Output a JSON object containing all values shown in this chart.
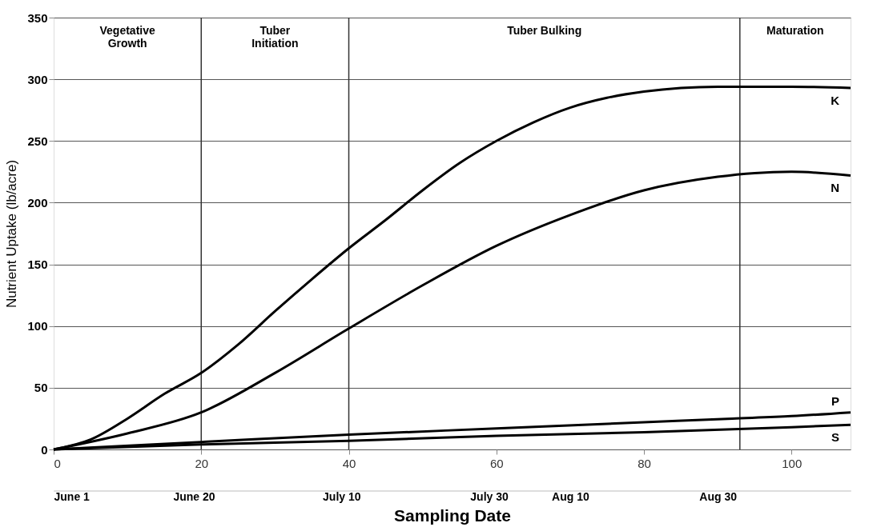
{
  "chart_data": {
    "type": "line",
    "xlabel": "Sampling Date",
    "ylabel": "Nutrient Uptake (lb/acre)",
    "xlim": [
      0,
      108
    ],
    "xticks": [
      0,
      20,
      40,
      60,
      80,
      100
    ],
    "x2lim": [
      "--06-01",
      "--09-17"
    ],
    "x2ticks": [
      {
        "value": "--06-01",
        "label": "June 1"
      },
      {
        "value": "--06-20",
        "label": "June 20"
      },
      {
        "value": "--07-10",
        "label": "July 10"
      },
      {
        "value": "--07-30",
        "label": "July 30"
      },
      {
        "value": "--08-10",
        "label": "Aug 10"
      },
      {
        "value": "--08-30",
        "label": "Aug 30"
      }
    ],
    "ylim": [
      0,
      350
    ],
    "yticks": [
      0,
      50,
      100,
      150,
      200,
      250,
      300,
      350
    ],
    "grid": "y",
    "legend": false,
    "marker": "none",
    "line_style": "solid",
    "ref_lines": [
      {
        "axis": "x",
        "value": 20
      },
      {
        "axis": "x",
        "value": 40
      },
      {
        "axis": "x",
        "value": 93
      }
    ],
    "annotations": [
      "Vegetative\nGrowth",
      "Tuber\nInitiation",
      "Tuber Bulking",
      "Maturation"
    ],
    "series": [
      {
        "name": "K",
        "color": "#000000",
        "x": [
          0,
          5,
          10,
          15,
          20,
          25,
          30,
          35,
          40,
          45,
          50,
          55,
          60,
          65,
          70,
          75,
          80,
          85,
          90,
          95,
          100,
          108
        ],
        "values": [
          0,
          8,
          25,
          45,
          62,
          85,
          112,
          138,
          163,
          186,
          210,
          232,
          250,
          265,
          277,
          285,
          290,
          293,
          294,
          294,
          294,
          293
        ]
      },
      {
        "name": "N",
        "color": "#000000",
        "x": [
          0,
          10,
          20,
          30,
          40,
          50,
          60,
          70,
          80,
          90,
          95,
          100,
          108
        ],
        "values": [
          0,
          13,
          30,
          62,
          98,
          133,
          165,
          190,
          210,
          221,
          224,
          225,
          222
        ]
      },
      {
        "name": "P",
        "color": "#000000",
        "x": [
          0,
          20,
          40,
          60,
          80,
          92,
          100,
          108
        ],
        "values": [
          0,
          6,
          12,
          17,
          22,
          25,
          27,
          30
        ]
      },
      {
        "name": "S",
        "color": "#000000",
        "x": [
          0,
          20,
          40,
          60,
          80,
          100,
          108
        ],
        "values": [
          0,
          4,
          7,
          11,
          14,
          18,
          20
        ]
      }
    ]
  }
}
